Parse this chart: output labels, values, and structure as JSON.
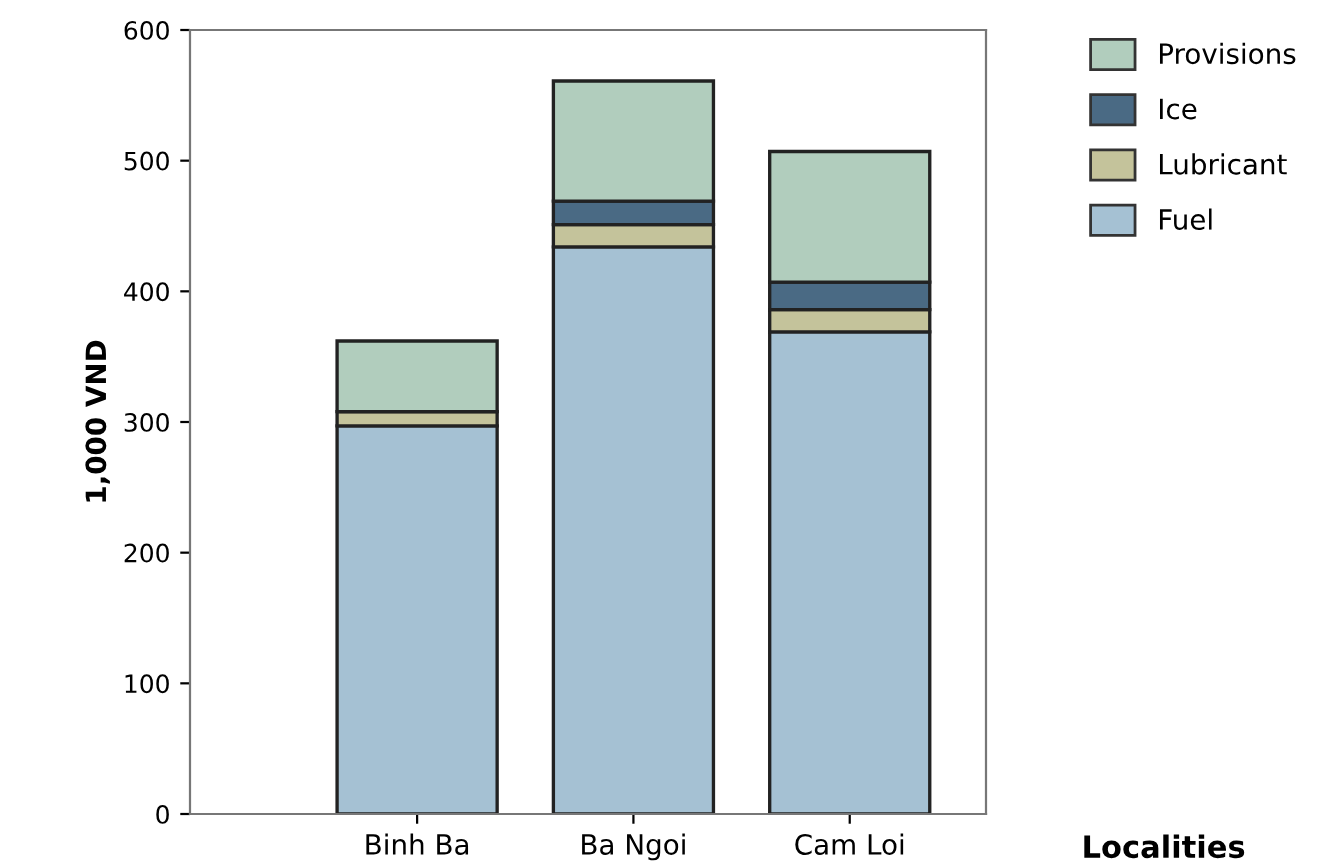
{
  "chart_data": {
    "type": "bar",
    "stacked": true,
    "xlabel": "Localities",
    "ylabel": "1,000 VND",
    "categories": [
      "Binh Ba",
      "Ba Ngoi",
      "Cam Loi"
    ],
    "series": [
      {
        "name": "Fuel",
        "color": "#a5c1d3",
        "values": [
          297,
          434,
          369
        ]
      },
      {
        "name": "Lubricant",
        "color": "#c4c39b",
        "values": [
          11,
          17,
          17
        ]
      },
      {
        "name": "Ice",
        "color": "#4a6a84",
        "values": [
          0,
          18,
          21
        ]
      },
      {
        "name": "Provisions",
        "color": "#b1cdbd",
        "values": [
          54,
          92,
          100
        ]
      }
    ],
    "ylim": [
      0,
      600
    ],
    "yticks": [
      0,
      100,
      200,
      300,
      400,
      500,
      600
    ],
    "grid": false,
    "legend": "top right"
  }
}
